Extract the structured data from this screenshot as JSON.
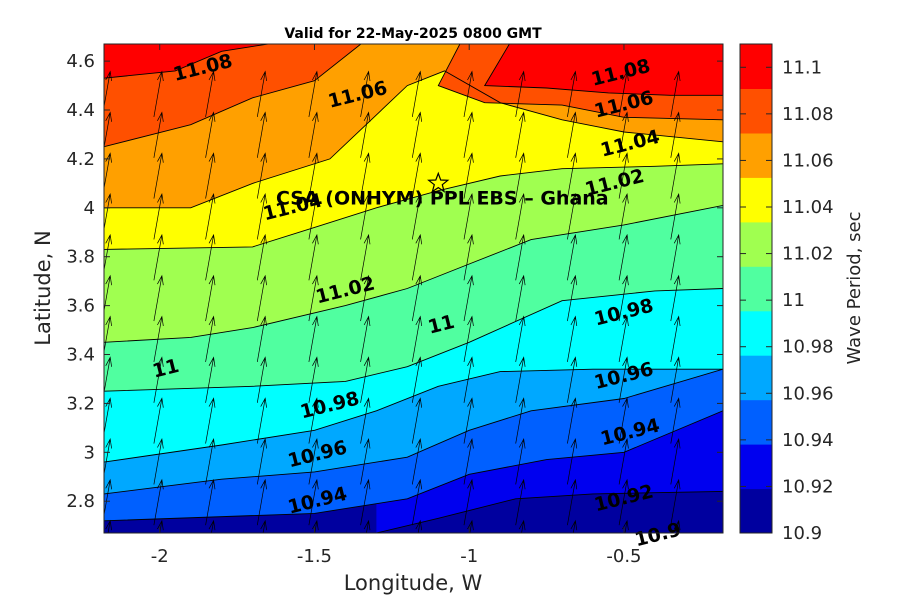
{
  "chart_data": {
    "type": "contour",
    "title": "Valid for 22-May-2025 0800 GMT",
    "xlabel": "Longitude, W",
    "ylabel": "Latitude, N",
    "xlim": [
      -2.18,
      -0.18
    ],
    "ylim": [
      2.67,
      4.67
    ],
    "x_ticks": [
      -2,
      -1.5,
      -1,
      -0.5
    ],
    "x_tick_labels": [
      "-2",
      "-1.5",
      "-1",
      "-0.5"
    ],
    "y_ticks": [
      2.8,
      3.0,
      3.2,
      3.4,
      3.6,
      3.8,
      4.0,
      4.2,
      4.4,
      4.6
    ],
    "y_tick_labels": [
      "2.8",
      "3",
      "3.2",
      "3.4",
      "3.6",
      "3.8",
      "4",
      "4.2",
      "4.4",
      "4.6"
    ],
    "colorbar": {
      "label": "Wave Period, sec",
      "levels": [
        10.9,
        10.92,
        10.94,
        10.96,
        10.98,
        11.0,
        11.02,
        11.04,
        11.06,
        11.08,
        11.1
      ],
      "tick_labels": [
        "10.9",
        "10.92",
        "10.94",
        "10.96",
        "10.98",
        "11",
        "11.02",
        "11.04",
        "11.06",
        "11.08",
        "11.1"
      ],
      "colors": [
        "#00009f",
        "#0000ef",
        "#0060ff",
        "#00a8ff",
        "#00ffff",
        "#50ffa0",
        "#a0ff50",
        "#ffff00",
        "#ffa000",
        "#ff5000",
        "#ff0000"
      ]
    },
    "contour_lines": [
      {
        "level": 10.9,
        "label": "10.9",
        "points": [
          [
            -1.3,
            2.67
          ],
          [
            -1.1,
            2.73
          ],
          [
            -0.85,
            2.81
          ],
          [
            -0.6,
            2.83
          ],
          [
            -0.18,
            2.84
          ]
        ]
      },
      {
        "level": 10.92,
        "label": "10.92",
        "points": [
          [
            -2.18,
            2.72
          ],
          [
            -1.5,
            2.75
          ],
          [
            -1.2,
            2.81
          ],
          [
            -1.0,
            2.91
          ],
          [
            -0.75,
            2.97
          ],
          [
            -0.5,
            3.0
          ],
          [
            -0.18,
            3.17
          ]
        ]
      },
      {
        "level": 10.94,
        "label": "10.94",
        "points": [
          [
            -2.18,
            2.83
          ],
          [
            -1.8,
            2.89
          ],
          [
            -1.5,
            2.92
          ],
          [
            -1.2,
            2.98
          ],
          [
            -1.0,
            3.09
          ],
          [
            -0.8,
            3.17
          ],
          [
            -0.5,
            3.22
          ],
          [
            -0.18,
            3.34
          ]
        ]
      },
      {
        "level": 10.96,
        "label": "10.96",
        "points": [
          [
            -2.18,
            2.96
          ],
          [
            -1.8,
            3.03
          ],
          [
            -1.5,
            3.09
          ],
          [
            -1.3,
            3.17
          ],
          [
            -1.1,
            3.27
          ],
          [
            -0.9,
            3.33
          ],
          [
            -0.6,
            3.34
          ],
          [
            -0.18,
            3.34
          ]
        ]
      },
      {
        "level": 10.98,
        "label": "10.98",
        "points": [
          [
            -2.18,
            3.25
          ],
          [
            -1.7,
            3.27
          ],
          [
            -1.4,
            3.29
          ],
          [
            -1.2,
            3.35
          ],
          [
            -1.0,
            3.45
          ],
          [
            -0.7,
            3.62
          ],
          [
            -0.4,
            3.66
          ],
          [
            -0.18,
            3.67
          ]
        ]
      },
      {
        "level": 11.0,
        "label": "11",
        "points": [
          [
            -2.18,
            3.45
          ],
          [
            -1.9,
            3.47
          ],
          [
            -1.7,
            3.51
          ],
          [
            -1.4,
            3.6
          ],
          [
            -1.2,
            3.67
          ],
          [
            -1.0,
            3.77
          ],
          [
            -0.8,
            3.87
          ],
          [
            -0.5,
            3.93
          ],
          [
            -0.18,
            4.01
          ]
        ]
      },
      {
        "level": 11.02,
        "label": "11.02",
        "points": [
          [
            -2.18,
            3.83
          ],
          [
            -1.7,
            3.84
          ],
          [
            -1.5,
            3.92
          ],
          [
            -1.3,
            4.0
          ],
          [
            -1.1,
            4.07
          ],
          [
            -0.9,
            4.13
          ],
          [
            -0.7,
            4.16
          ],
          [
            -0.4,
            4.17
          ],
          [
            -0.18,
            4.18
          ]
        ]
      },
      {
        "level": 11.04,
        "label": "11.04",
        "points": [
          [
            -2.18,
            4.0
          ],
          [
            -1.9,
            4.0
          ],
          [
            -1.7,
            4.1
          ],
          [
            -1.45,
            4.2
          ],
          [
            -1.3,
            4.38
          ],
          [
            -1.2,
            4.5
          ],
          [
            -1.08,
            4.56
          ],
          [
            -0.9,
            4.43
          ],
          [
            -0.7,
            4.36
          ],
          [
            -0.5,
            4.31
          ],
          [
            -0.18,
            4.27
          ]
        ]
      },
      {
        "level": 11.06,
        "label": "11.06",
        "points": [
          [
            -2.18,
            4.25
          ],
          [
            -1.9,
            4.34
          ],
          [
            -1.7,
            4.45
          ],
          [
            -1.5,
            4.52
          ],
          [
            -1.35,
            4.67
          ]
        ]
      },
      {
        "level": 11.06,
        "label": "11.06",
        "points": [
          [
            -1.03,
            4.67
          ],
          [
            -1.1,
            4.5
          ],
          [
            -0.95,
            4.43
          ],
          [
            -0.7,
            4.42
          ],
          [
            -0.5,
            4.37
          ],
          [
            -0.18,
            4.36
          ]
        ]
      },
      {
        "level": 11.08,
        "label": "11.08",
        "points": [
          [
            -2.18,
            4.53
          ],
          [
            -1.95,
            4.56
          ],
          [
            -1.8,
            4.64
          ],
          [
            -1.65,
            4.67
          ]
        ]
      },
      {
        "level": 11.08,
        "label": "11.08",
        "points": [
          [
            -0.87,
            4.67
          ],
          [
            -0.95,
            4.5
          ],
          [
            -0.75,
            4.49
          ],
          [
            -0.55,
            4.47
          ],
          [
            -0.35,
            4.46
          ],
          [
            -0.18,
            4.46
          ]
        ]
      }
    ],
    "contour_labels": [
      {
        "text": "11.08",
        "lon": -1.86,
        "lat": 4.57
      },
      {
        "text": "11.06",
        "lon": -1.36,
        "lat": 4.46
      },
      {
        "text": "11.08",
        "lon": -0.51,
        "lat": 4.55
      },
      {
        "text": "11.06",
        "lon": -0.5,
        "lat": 4.42
      },
      {
        "text": "11.04",
        "lon": -0.48,
        "lat": 4.26
      },
      {
        "text": "11.02",
        "lon": -0.53,
        "lat": 4.1
      },
      {
        "text": "11.04",
        "lon": -1.57,
        "lat": 4.0
      },
      {
        "text": "11.02",
        "lon": -1.4,
        "lat": 3.66
      },
      {
        "text": "11",
        "lon": -1.09,
        "lat": 3.52
      },
      {
        "text": "10.98",
        "lon": -0.5,
        "lat": 3.57
      },
      {
        "text": "11",
        "lon": -1.98,
        "lat": 3.34
      },
      {
        "text": "10.98",
        "lon": -1.45,
        "lat": 3.19
      },
      {
        "text": "10.96",
        "lon": -0.5,
        "lat": 3.31
      },
      {
        "text": "10.96",
        "lon": -1.49,
        "lat": 2.99
      },
      {
        "text": "10.94",
        "lon": -0.48,
        "lat": 3.08
      },
      {
        "text": "10.94",
        "lon": -1.49,
        "lat": 2.8
      },
      {
        "text": "10.92",
        "lon": -0.5,
        "lat": 2.81
      },
      {
        "text": "10.9",
        "lon": -0.39,
        "lat": 2.66
      }
    ],
    "site": {
      "name": "CSA (ONHYM) PPL EBS  – Ghana",
      "lon": -1.1,
      "lat": 4.1
    },
    "vectors": {
      "direction_deg_from_north": 10,
      "x_spacing": 0.167,
      "y_spacing": 0.167
    }
  }
}
